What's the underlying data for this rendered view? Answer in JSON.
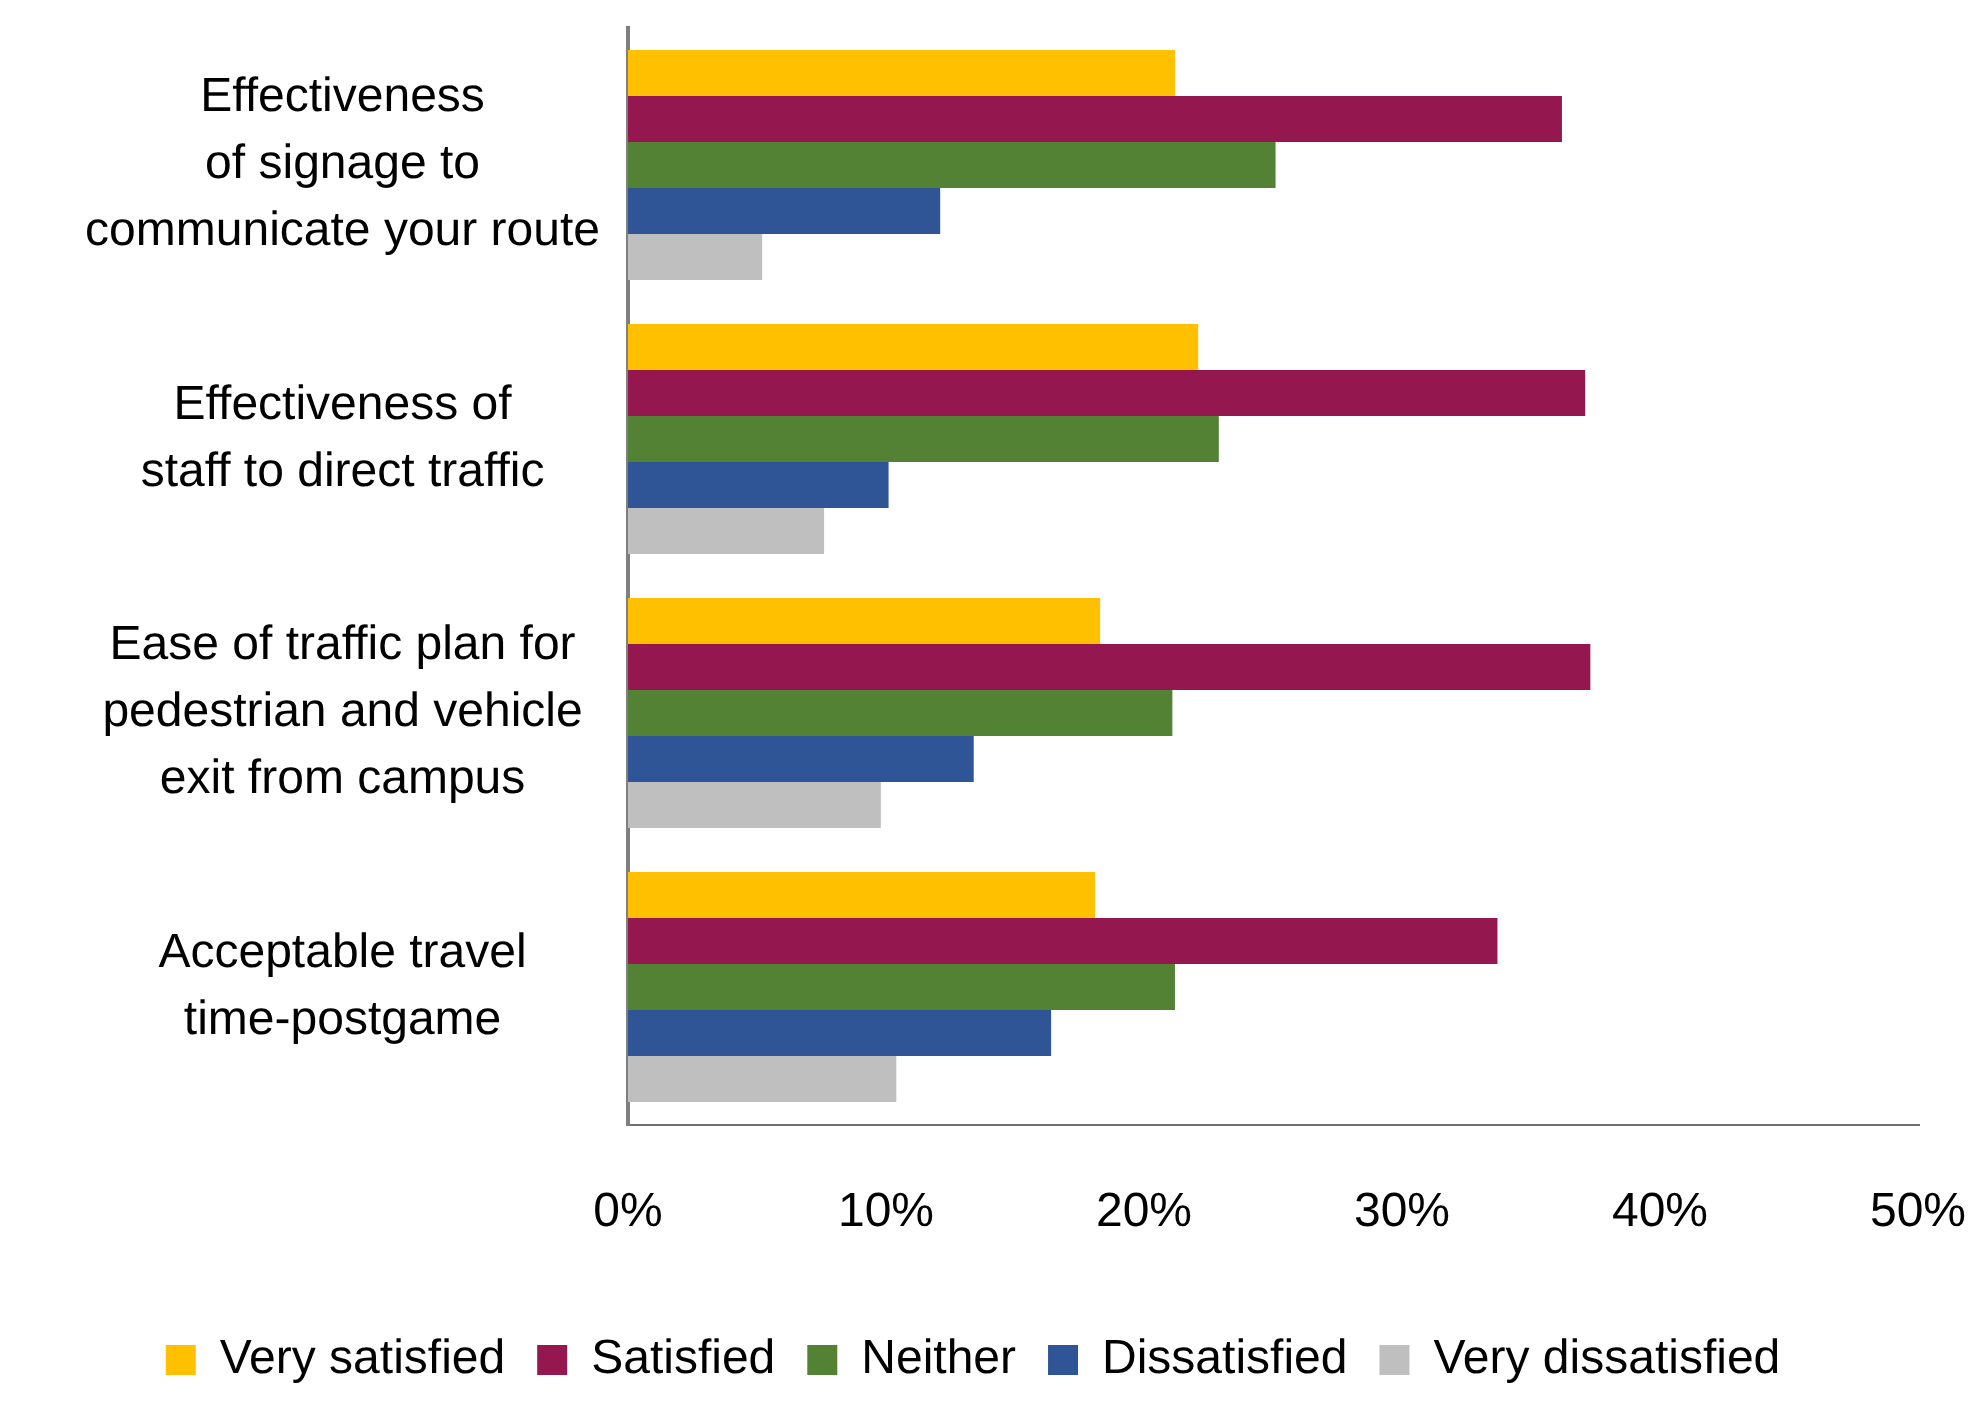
{
  "chart_data": {
    "type": "bar",
    "orientation": "horizontal",
    "categories": [
      "Effectiveness of signage to communicate your route",
      "Effectiveness of staff to direct traffic",
      "Ease of traffic plan for pedestrian and vehicle exit from campus",
      "Acceptable travel time-postgame"
    ],
    "series": [
      {
        "name": "Very satisfied",
        "color": "#ffc000",
        "values": [
          21.2,
          22.1,
          18.3,
          18.1
        ]
      },
      {
        "name": "Satisfied",
        "color": "#951750",
        "values": [
          36.2,
          37.1,
          37.3,
          33.7
        ]
      },
      {
        "name": "Neither",
        "color": "#548235",
        "values": [
          25.1,
          22.9,
          21.1,
          21.2
        ]
      },
      {
        "name": "Dissatisfied",
        "color": "#2f5597",
        "values": [
          12.1,
          10.1,
          13.4,
          16.4
        ]
      },
      {
        "name": "Very dissatisfied",
        "color": "#bfbfbf",
        "values": [
          5.2,
          7.6,
          9.8,
          10.4
        ]
      }
    ],
    "xlim": [
      0,
      50
    ],
    "xticks": [
      {
        "value": 0,
        "label": "0%"
      },
      {
        "value": 10,
        "label": "10%"
      },
      {
        "value": 20,
        "label": "20%"
      },
      {
        "value": 30,
        "label": "30%"
      },
      {
        "value": 40,
        "label": "40%"
      },
      {
        "value": 50,
        "label": "50%"
      }
    ],
    "grid": false,
    "legend": "bottom"
  }
}
